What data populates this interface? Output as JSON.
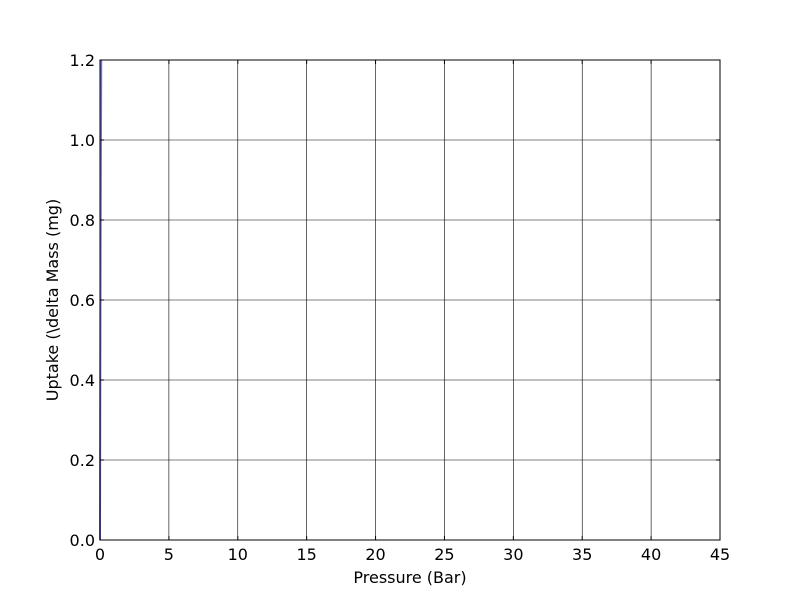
{
  "chart_data": {
    "type": "line",
    "title": "",
    "xlabel": "Pressure (Bar)",
    "ylabel": "Uptake (\\delta Mass (mg)",
    "xlim": [
      0,
      45
    ],
    "ylim": [
      0,
      1.2
    ],
    "x_ticks": [
      0,
      5,
      10,
      15,
      20,
      25,
      30,
      35,
      40,
      45
    ],
    "y_ticks": [
      0.0,
      0.2,
      0.4,
      0.6,
      0.8,
      1.0,
      1.2
    ],
    "x_tick_labels": [
      "0",
      "5",
      "10",
      "15",
      "20",
      "25",
      "30",
      "35",
      "40",
      "45"
    ],
    "y_tick_labels": [
      "0.0",
      "0.2",
      "0.4",
      "0.6",
      "0.8",
      "1.0",
      "1.2"
    ],
    "grid": true,
    "legend": "none",
    "series": [
      {
        "color": "#7070e0",
        "x": [
          0,
          0.005,
          0.01,
          0.02,
          0.03,
          0.04,
          0.05,
          0.06,
          0.07,
          0.08,
          0.09
        ],
        "y": [
          0.0,
          0.1,
          0.2,
          0.35,
          0.5,
          0.65,
          0.8,
          0.9,
          1.0,
          1.1,
          1.2
        ]
      }
    ]
  }
}
